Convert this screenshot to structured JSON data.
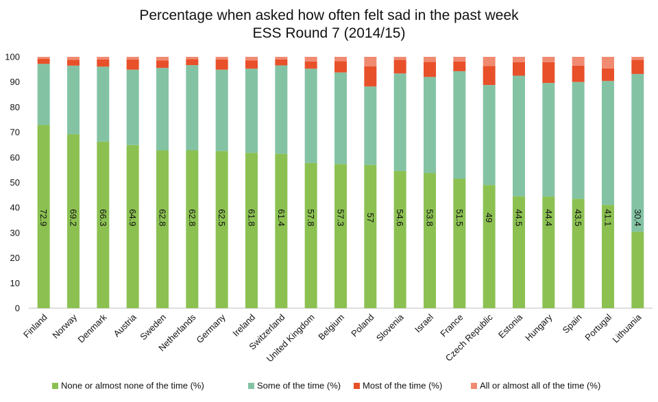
{
  "chart_data": {
    "type": "bar",
    "stacked": true,
    "title": "Percentage when asked how often felt sad in the past week",
    "subtitle": "ESS Round 7 (2014/15)",
    "ylim": [
      0,
      100
    ],
    "yticks": [
      0,
      10,
      20,
      30,
      40,
      50,
      60,
      70,
      80,
      90,
      100
    ],
    "gridlines": false,
    "legend_position": "bottom",
    "categories": [
      "Finland",
      "Norway",
      "Denmark",
      "Austria",
      "Sweden",
      "Netherlands",
      "Germany",
      "Ireland",
      "Switzerland",
      "United Kingdom",
      "Belgium",
      "Poland",
      "Slovenia",
      "Israel",
      "France",
      "Czech Republic",
      "Estonia",
      "Hungary",
      "Spain",
      "Portugal",
      "Lithuania"
    ],
    "series": [
      {
        "name": "None or almost none of the time (%)",
        "color": "#8cc152",
        "values": [
          72.9,
          69.2,
          66.3,
          64.9,
          62.8,
          62.8,
          62.5,
          61.8,
          61.4,
          57.8,
          57.3,
          57,
          54.6,
          53.8,
          51.5,
          49,
          44.5,
          44.4,
          43.5,
          41.1,
          30.4
        ]
      },
      {
        "name": "Some of the time (%)",
        "color": "#83c3a4",
        "values": [
          24.3,
          27.3,
          29.8,
          30.0,
          32.8,
          33.9,
          32.4,
          33.5,
          35.2,
          37.5,
          36.5,
          31.2,
          38.8,
          38.2,
          42.8,
          39.8,
          48.0,
          45.2,
          46.5,
          49.3,
          62.8
        ]
      },
      {
        "name": "Most of the time (%)",
        "color": "#e8502a",
        "values": [
          2.0,
          2.3,
          2.9,
          4.0,
          2.9,
          2.4,
          4.0,
          3.2,
          2.4,
          2.8,
          4.5,
          8.0,
          5.4,
          6.0,
          3.8,
          7.6,
          5.4,
          8.3,
          6.5,
          5.0,
          5.6
        ]
      },
      {
        "name": "All or almost all of the time (%)",
        "color": "#f08a70",
        "values": [
          0.8,
          1.2,
          1.0,
          1.1,
          1.5,
          0.9,
          1.1,
          1.5,
          1.0,
          1.9,
          1.7,
          3.8,
          1.2,
          2.0,
          1.9,
          3.6,
          2.1,
          2.1,
          3.5,
          4.6,
          1.2
        ]
      }
    ],
    "data_labels_series": 0
  }
}
